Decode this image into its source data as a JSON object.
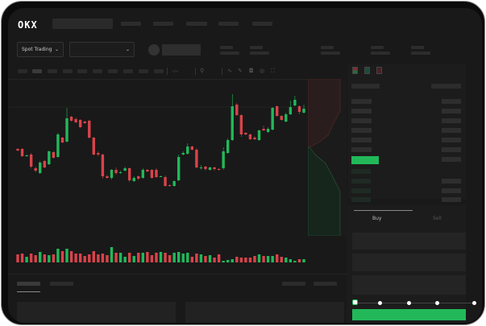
{
  "header": {
    "logo": "OKX"
  },
  "toolbar": {
    "market_select": "Spot Trading",
    "pair_select": ""
  },
  "trade": {
    "tabs": [
      "Buy",
      "Sell"
    ],
    "active_tab": "Buy",
    "slider_percent": 0
  },
  "colors": {
    "up": "#22b85a",
    "down": "#d9434a",
    "background": "#191919"
  },
  "chart_data": {
    "type": "candlestick",
    "candles": [
      [
        217,
        215,
        218,
        214
      ],
      [
        217,
        208,
        218,
        207
      ],
      [
        208,
        209,
        210,
        207
      ],
      [
        210,
        195,
        212,
        193
      ],
      [
        193,
        190,
        195,
        188
      ],
      [
        187,
        200,
        202,
        186
      ],
      [
        202,
        194,
        203,
        193
      ],
      [
        198,
        214,
        215,
        197
      ],
      [
        213,
        206,
        214,
        205
      ],
      [
        207,
        235,
        237,
        206
      ],
      [
        231,
        225,
        232,
        224
      ],
      [
        226,
        255,
        268,
        225
      ],
      [
        257,
        252,
        258,
        251
      ],
      [
        254,
        250,
        256,
        249
      ],
      [
        253,
        244,
        254,
        243
      ],
      [
        251,
        249,
        252,
        248
      ],
      [
        252,
        231,
        253,
        230
      ],
      [
        231,
        210,
        232,
        209
      ],
      [
        212,
        210,
        214,
        208
      ],
      [
        210,
        183,
        211,
        180
      ],
      [
        183,
        181,
        185,
        180
      ],
      [
        181,
        191,
        192,
        179
      ],
      [
        191,
        187,
        194,
        185
      ],
      [
        187,
        188,
        190,
        186
      ],
      [
        190,
        193,
        195,
        189
      ],
      [
        193,
        178,
        194,
        176
      ],
      [
        177,
        181,
        183,
        176
      ],
      [
        183,
        180,
        184,
        178
      ],
      [
        181,
        191,
        193,
        180
      ],
      [
        191,
        189,
        192,
        188
      ],
      [
        191,
        181,
        192,
        180
      ],
      [
        191,
        182,
        193,
        181
      ],
      [
        183,
        183,
        184,
        182
      ],
      [
        182,
        171,
        184,
        170
      ],
      [
        172,
        171,
        173,
        170
      ],
      [
        171,
        177,
        178,
        170
      ],
      [
        178,
        207,
        210,
        177
      ],
      [
        210,
        212,
        214,
        209
      ],
      [
        211,
        220,
        224,
        210
      ],
      [
        220,
        216,
        221,
        215
      ],
      [
        216,
        194,
        218,
        193
      ],
      [
        193,
        194,
        197,
        191
      ],
      [
        195,
        192,
        196,
        190
      ],
      [
        191,
        194,
        195,
        190
      ],
      [
        194,
        192,
        195,
        190
      ],
      [
        192,
        191,
        193,
        190
      ],
      [
        193,
        214,
        219,
        191
      ],
      [
        212,
        228,
        230,
        211
      ],
      [
        228,
        270,
        285,
        227
      ],
      [
        272,
        259,
        274,
        258
      ],
      [
        259,
        235,
        260,
        232
      ],
      [
        237,
        235,
        238,
        234
      ],
      [
        235,
        229,
        236,
        228
      ],
      [
        231,
        229,
        233,
        228
      ],
      [
        228,
        240,
        241,
        227
      ],
      [
        242,
        240,
        246,
        239
      ],
      [
        238,
        242,
        244,
        237
      ],
      [
        241,
        268,
        269,
        240
      ],
      [
        270,
        258,
        271,
        257
      ],
      [
        258,
        253,
        259,
        252
      ],
      [
        251,
        260,
        262,
        250
      ],
      [
        260,
        269,
        277,
        259
      ],
      [
        271,
        278,
        283,
        270
      ],
      [
        270,
        263,
        271,
        260
      ],
      [
        262,
        267,
        272,
        261
      ]
    ],
    "volume": [
      10,
      11,
      7,
      11,
      9,
      13,
      10,
      9,
      10,
      17,
      14,
      17,
      14,
      11,
      11,
      8,
      10,
      14,
      10,
      11,
      9,
      19,
      12,
      12,
      7,
      12,
      8,
      12,
      12,
      13,
      9,
      12,
      13,
      12,
      9,
      12,
      13,
      11,
      12,
      7,
      11,
      10,
      8,
      9,
      6,
      10,
      2,
      3,
      4,
      7,
      6,
      6,
      6,
      8,
      10,
      8,
      8,
      8,
      10,
      7,
      6,
      4,
      2,
      4,
      4
    ]
  }
}
